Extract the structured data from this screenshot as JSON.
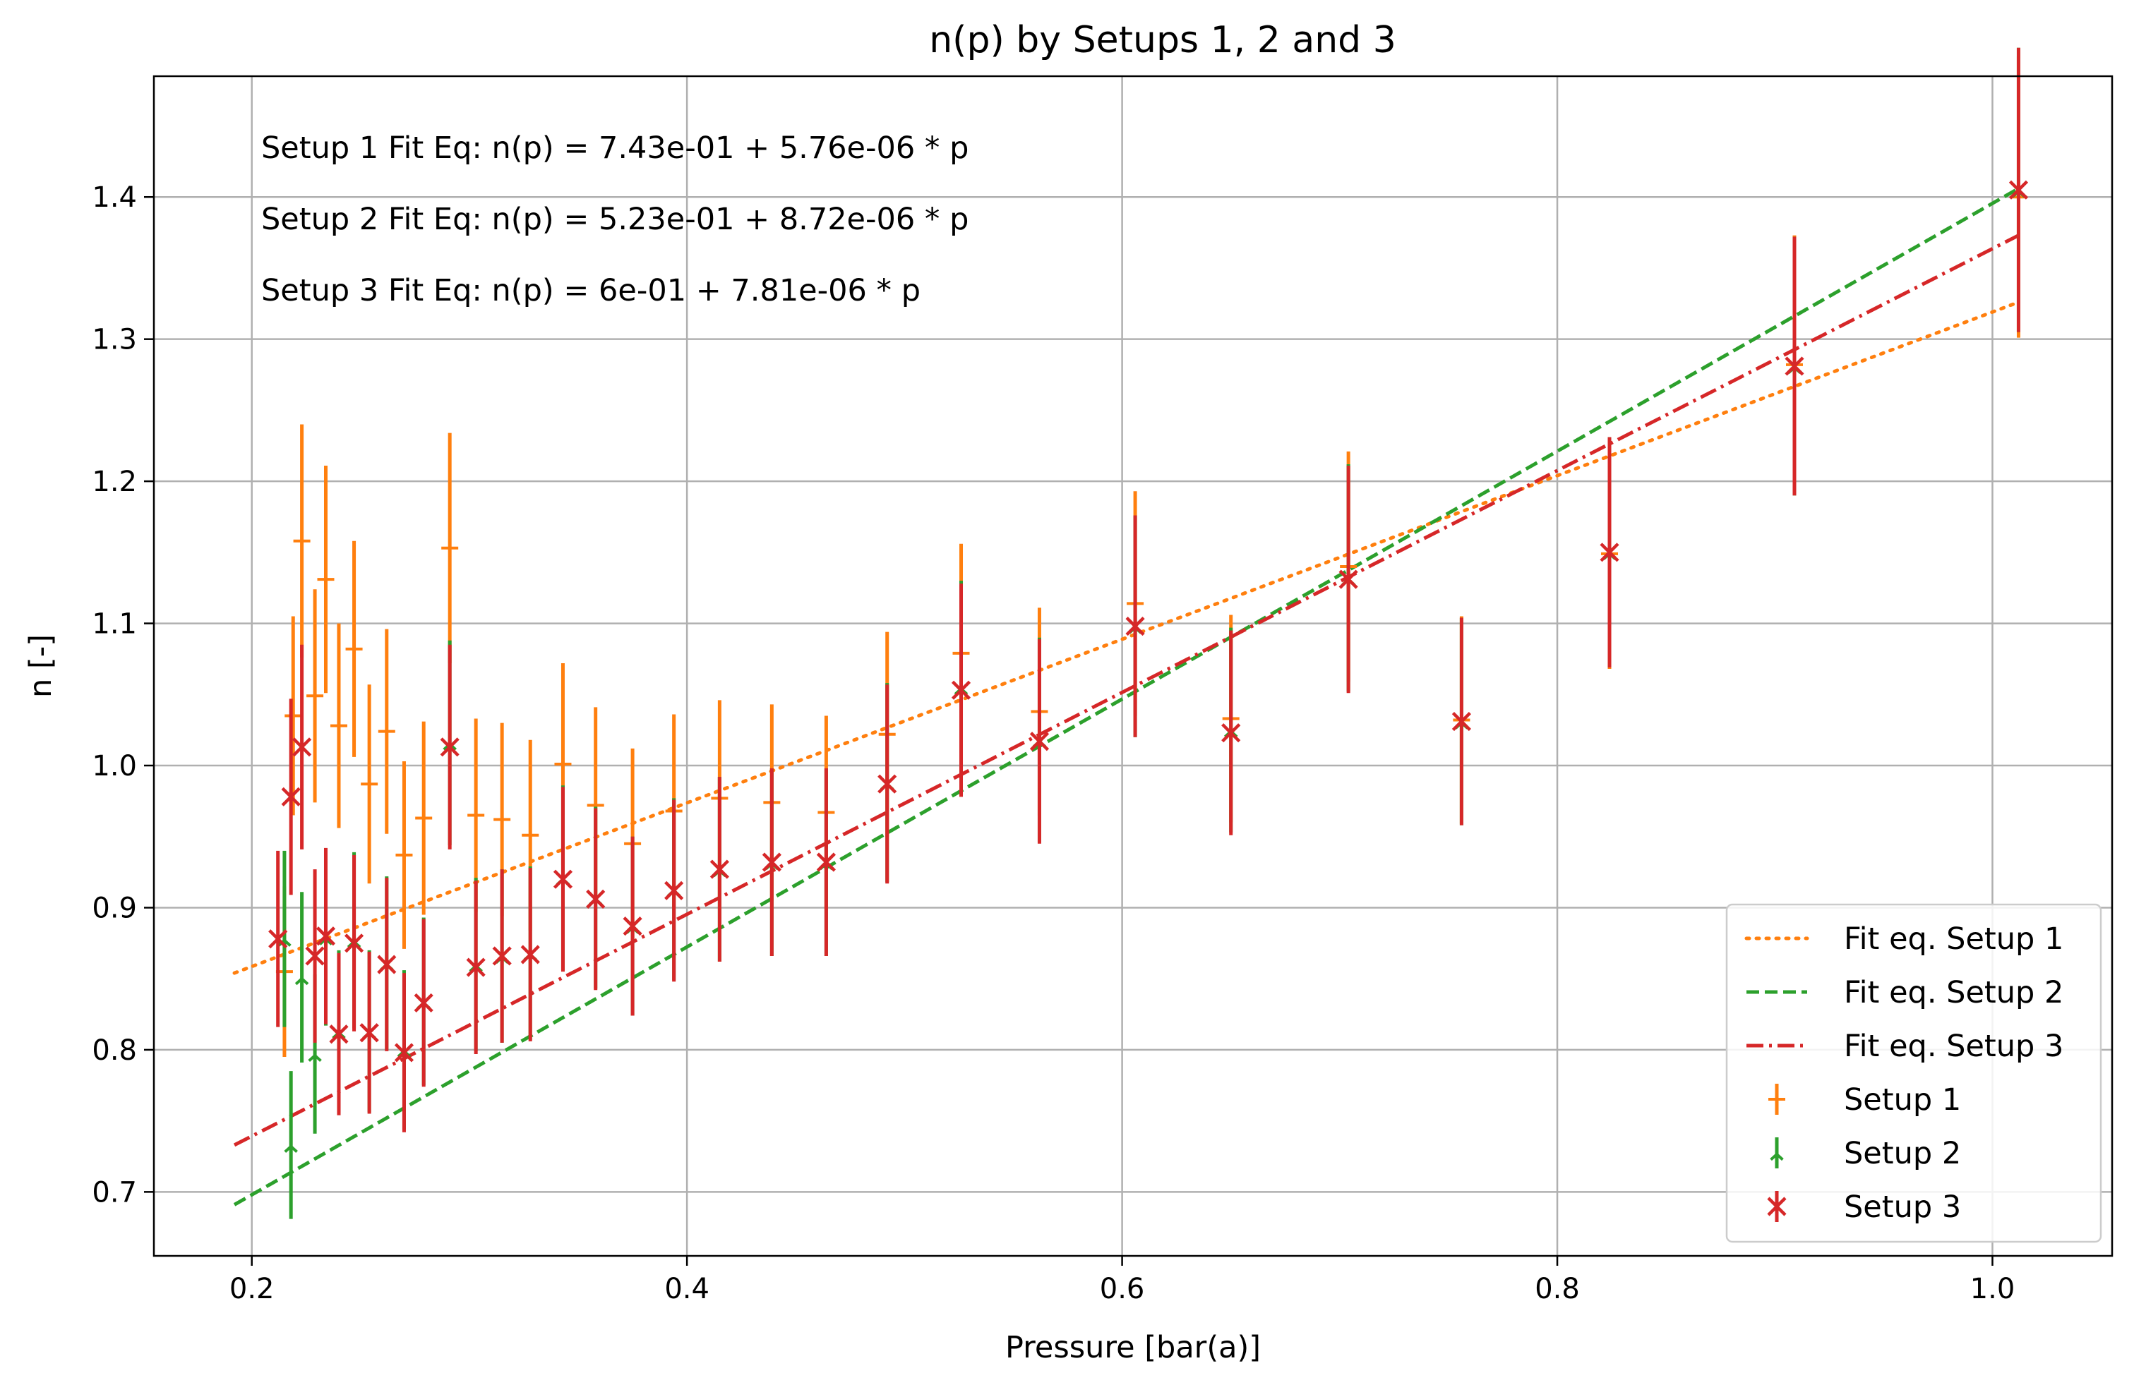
{
  "chart_data": {
    "type": "scatter",
    "title": "n(p) by Setups 1, 2 and 3",
    "xlabel": "Pressure [bar(a)]",
    "ylabel": "n [-]",
    "xlim": [
      0.155,
      1.055
    ],
    "ylim": [
      0.655,
      1.485
    ],
    "xticks": [
      "0.2",
      "0.4",
      "0.6",
      "0.8",
      "1.0"
    ],
    "yticks": [
      "0.7",
      "0.8",
      "0.9",
      "1.0",
      "1.1",
      "1.2",
      "1.3",
      "1.4"
    ],
    "grid": true,
    "legend_position": "bottom-right",
    "annotations": [
      "Setup 1 Fit Eq: n(p) = 7.43e-01 + 5.76e-06 * p",
      "Setup 2 Fit Eq: n(p) = 5.23e-01 + 8.72e-06 * p",
      "Setup 3 Fit Eq: n(p) = 6e-01 + 7.81e-06 * p"
    ],
    "fits": [
      {
        "name": "Fit eq. Setup 1",
        "color": "#ff7f0e",
        "dash": "dotted",
        "x": [
          0.192,
          1.012
        ],
        "y": [
          0.854,
          1.326
        ]
      },
      {
        "name": "Fit eq. Setup 2",
        "color": "#2ca02c",
        "dash": "dashed",
        "x": [
          0.192,
          1.012
        ],
        "y": [
          0.691,
          1.406
        ]
      },
      {
        "name": "Fit eq. Setup 3",
        "color": "#d62728",
        "dash": "dashdot",
        "x": [
          0.192,
          1.012
        ],
        "y": [
          0.733,
          1.373
        ]
      }
    ],
    "series": [
      {
        "name": "Setup 1",
        "color": "#ff7f0e",
        "marker": "plus",
        "points": [
          {
            "x": 0.215,
            "y": 0.855,
            "err": 0.06
          },
          {
            "x": 0.219,
            "y": 1.035,
            "err": 0.07
          },
          {
            "x": 0.223,
            "y": 1.158,
            "err": 0.082
          },
          {
            "x": 0.229,
            "y": 1.049,
            "err": 0.075
          },
          {
            "x": 0.234,
            "y": 1.131,
            "err": 0.08
          },
          {
            "x": 0.24,
            "y": 1.028,
            "err": 0.072
          },
          {
            "x": 0.247,
            "y": 1.082,
            "err": 0.076
          },
          {
            "x": 0.254,
            "y": 0.987,
            "err": 0.07
          },
          {
            "x": 0.262,
            "y": 1.024,
            "err": 0.072
          },
          {
            "x": 0.27,
            "y": 0.937,
            "err": 0.066
          },
          {
            "x": 0.279,
            "y": 0.963,
            "err": 0.068
          },
          {
            "x": 0.291,
            "y": 1.153,
            "err": 0.081
          },
          {
            "x": 0.303,
            "y": 0.965,
            "err": 0.068
          },
          {
            "x": 0.315,
            "y": 0.962,
            "err": 0.068
          },
          {
            "x": 0.328,
            "y": 0.951,
            "err": 0.067
          },
          {
            "x": 0.343,
            "y": 1.001,
            "err": 0.071
          },
          {
            "x": 0.358,
            "y": 0.972,
            "err": 0.069
          },
          {
            "x": 0.375,
            "y": 0.945,
            "err": 0.067
          },
          {
            "x": 0.394,
            "y": 0.968,
            "err": 0.068
          },
          {
            "x": 0.415,
            "y": 0.977,
            "err": 0.069
          },
          {
            "x": 0.439,
            "y": 0.974,
            "err": 0.069
          },
          {
            "x": 0.464,
            "y": 0.967,
            "err": 0.068
          },
          {
            "x": 0.492,
            "y": 1.022,
            "err": 0.072
          },
          {
            "x": 0.526,
            "y": 1.079,
            "err": 0.077
          },
          {
            "x": 0.562,
            "y": 1.038,
            "err": 0.073
          },
          {
            "x": 0.606,
            "y": 1.114,
            "err": 0.079
          },
          {
            "x": 0.65,
            "y": 1.033,
            "err": 0.073
          },
          {
            "x": 0.704,
            "y": 1.14,
            "err": 0.081
          },
          {
            "x": 0.756,
            "y": 1.032,
            "err": 0.073
          },
          {
            "x": 0.824,
            "y": 1.149,
            "err": 0.081
          },
          {
            "x": 0.909,
            "y": 1.282,
            "err": 0.091
          },
          {
            "x": 1.012,
            "y": 1.4,
            "err": 0.099
          }
        ]
      },
      {
        "name": "Setup 2",
        "color": "#2ca02c",
        "marker": "tri",
        "points": [
          {
            "x": 0.215,
            "y": 0.878,
            "err": 0.062
          },
          {
            "x": 0.218,
            "y": 0.733,
            "err": 0.052
          },
          {
            "x": 0.223,
            "y": 0.851,
            "err": 0.06
          },
          {
            "x": 0.229,
            "y": 0.797,
            "err": 0.056
          },
          {
            "x": 0.234,
            "y": 0.879,
            "err": 0.062
          },
          {
            "x": 0.24,
            "y": 0.813,
            "err": 0.057
          },
          {
            "x": 0.247,
            "y": 0.877,
            "err": 0.062
          },
          {
            "x": 0.254,
            "y": 0.813,
            "err": 0.057
          },
          {
            "x": 0.262,
            "y": 0.861,
            "err": 0.061
          },
          {
            "x": 0.27,
            "y": 0.8,
            "err": 0.056
          },
          {
            "x": 0.279,
            "y": 0.834,
            "err": 0.059
          },
          {
            "x": 0.291,
            "y": 1.016,
            "err": 0.072
          },
          {
            "x": 0.303,
            "y": 0.86,
            "err": 0.061
          },
          {
            "x": 0.315,
            "y": 0.866,
            "err": 0.061
          },
          {
            "x": 0.328,
            "y": 0.868,
            "err": 0.061
          },
          {
            "x": 0.343,
            "y": 0.921,
            "err": 0.065
          },
          {
            "x": 0.358,
            "y": 0.907,
            "err": 0.064
          },
          {
            "x": 0.375,
            "y": 0.887,
            "err": 0.063
          },
          {
            "x": 0.394,
            "y": 0.913,
            "err": 0.064
          },
          {
            "x": 0.415,
            "y": 0.927,
            "err": 0.065
          },
          {
            "x": 0.439,
            "y": 0.932,
            "err": 0.066
          },
          {
            "x": 0.464,
            "y": 0.932,
            "err": 0.066
          },
          {
            "x": 0.492,
            "y": 0.988,
            "err": 0.07
          },
          {
            "x": 0.526,
            "y": 1.055,
            "err": 0.075
          },
          {
            "x": 0.562,
            "y": 1.018,
            "err": 0.072
          },
          {
            "x": 0.606,
            "y": 1.098,
            "err": 0.078
          },
          {
            "x": 0.65,
            "y": 1.025,
            "err": 0.072
          },
          {
            "x": 0.704,
            "y": 1.132,
            "err": 0.08
          },
          {
            "x": 0.756,
            "y": 1.031,
            "err": 0.073
          },
          {
            "x": 0.824,
            "y": 1.15,
            "err": 0.081
          },
          {
            "x": 0.909,
            "y": 1.281,
            "err": 0.091
          },
          {
            "x": 1.012,
            "y": 1.405,
            "err": 0.1
          }
        ]
      },
      {
        "name": "Setup 3",
        "color": "#d62728",
        "marker": "x",
        "points": [
          {
            "x": 0.212,
            "y": 0.878,
            "err": 0.062
          },
          {
            "x": 0.218,
            "y": 0.978,
            "err": 0.069
          },
          {
            "x": 0.223,
            "y": 1.013,
            "err": 0.072
          },
          {
            "x": 0.229,
            "y": 0.866,
            "err": 0.061
          },
          {
            "x": 0.234,
            "y": 0.88,
            "err": 0.062
          },
          {
            "x": 0.24,
            "y": 0.811,
            "err": 0.057
          },
          {
            "x": 0.247,
            "y": 0.875,
            "err": 0.062
          },
          {
            "x": 0.254,
            "y": 0.812,
            "err": 0.057
          },
          {
            "x": 0.262,
            "y": 0.86,
            "err": 0.061
          },
          {
            "x": 0.27,
            "y": 0.798,
            "err": 0.056
          },
          {
            "x": 0.279,
            "y": 0.833,
            "err": 0.059
          },
          {
            "x": 0.291,
            "y": 1.013,
            "err": 0.072
          },
          {
            "x": 0.303,
            "y": 0.858,
            "err": 0.061
          },
          {
            "x": 0.315,
            "y": 0.866,
            "err": 0.061
          },
          {
            "x": 0.328,
            "y": 0.867,
            "err": 0.061
          },
          {
            "x": 0.343,
            "y": 0.92,
            "err": 0.065
          },
          {
            "x": 0.358,
            "y": 0.906,
            "err": 0.064
          },
          {
            "x": 0.375,
            "y": 0.887,
            "err": 0.063
          },
          {
            "x": 0.394,
            "y": 0.912,
            "err": 0.064
          },
          {
            "x": 0.415,
            "y": 0.927,
            "err": 0.065
          },
          {
            "x": 0.439,
            "y": 0.932,
            "err": 0.066
          },
          {
            "x": 0.464,
            "y": 0.932,
            "err": 0.066
          },
          {
            "x": 0.492,
            "y": 0.987,
            "err": 0.07
          },
          {
            "x": 0.526,
            "y": 1.053,
            "err": 0.075
          },
          {
            "x": 0.562,
            "y": 1.017,
            "err": 0.072
          },
          {
            "x": 0.606,
            "y": 1.098,
            "err": 0.078
          },
          {
            "x": 0.65,
            "y": 1.023,
            "err": 0.072
          },
          {
            "x": 0.704,
            "y": 1.131,
            "err": 0.08
          },
          {
            "x": 0.756,
            "y": 1.031,
            "err": 0.073
          },
          {
            "x": 0.824,
            "y": 1.15,
            "err": 0.081
          },
          {
            "x": 0.909,
            "y": 1.281,
            "err": 0.091
          },
          {
            "x": 1.012,
            "y": 1.405,
            "err": 0.1
          }
        ]
      }
    ],
    "legend": [
      "Fit eq. Setup 1",
      "Fit eq. Setup 2",
      "Fit eq. Setup 3",
      "Setup 1",
      "Setup 2",
      "Setup 3"
    ]
  }
}
